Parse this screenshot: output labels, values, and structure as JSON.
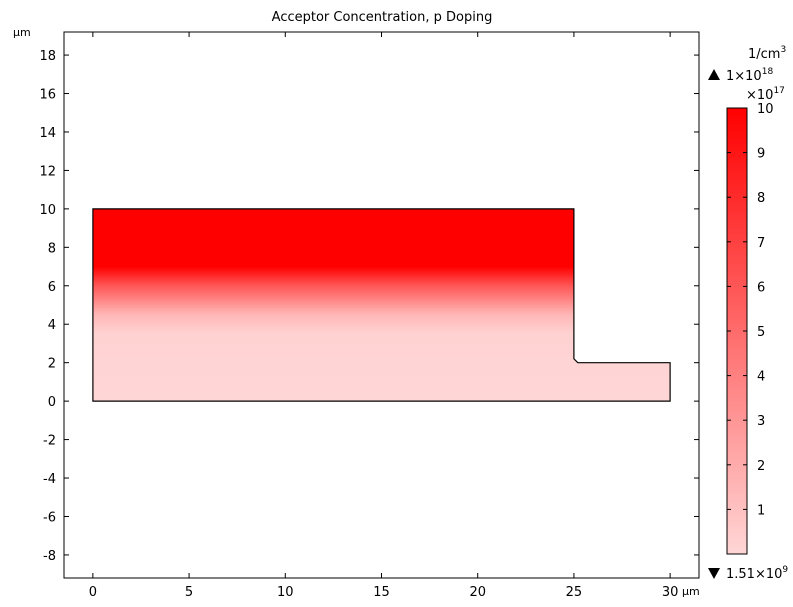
{
  "chart_data": {
    "type": "heatmap",
    "title": "Acceptor Concentration, p Doping",
    "x_unit": "µm",
    "y_unit": "µm",
    "xlim": [
      -1.5,
      31.5
    ],
    "ylim": [
      -9.2,
      19.2
    ],
    "x_ticks": [
      0,
      5,
      10,
      15,
      20,
      25,
      30
    ],
    "y_ticks": [
      -8,
      -6,
      -4,
      -2,
      0,
      2,
      4,
      6,
      8,
      10,
      12,
      14,
      16,
      18
    ],
    "grid": false,
    "geometry": {
      "outline": [
        [
          0,
          0
        ],
        [
          30,
          0
        ],
        [
          30,
          2
        ],
        [
          25.2,
          2
        ],
        [
          25,
          2.2
        ],
        [
          25,
          10
        ],
        [
          0,
          10
        ]
      ]
    },
    "field": {
      "description_stops_y": [
        {
          "y": 10,
          "value": 10
        },
        {
          "y": 7,
          "value": 10
        },
        {
          "y": 6,
          "value": 6
        },
        {
          "y": 4.5,
          "value": 1.5
        },
        {
          "y": 3.5,
          "value": 0.2
        },
        {
          "y": 0,
          "value": 0.0
        }
      ]
    },
    "colorbar": {
      "unit": "1/cm",
      "unit_exp": "3",
      "max_label": "1×10",
      "max_exp": "18",
      "scale_label": "×10",
      "scale_exp": "17",
      "min_label": "1.51×10",
      "min_exp": "9",
      "ticks": [
        1,
        2,
        3,
        4,
        5,
        6,
        7,
        8,
        9,
        10
      ],
      "range": [
        0,
        10
      ],
      "color_low": "#ffd6d6",
      "color_high": "#ff0000"
    }
  }
}
